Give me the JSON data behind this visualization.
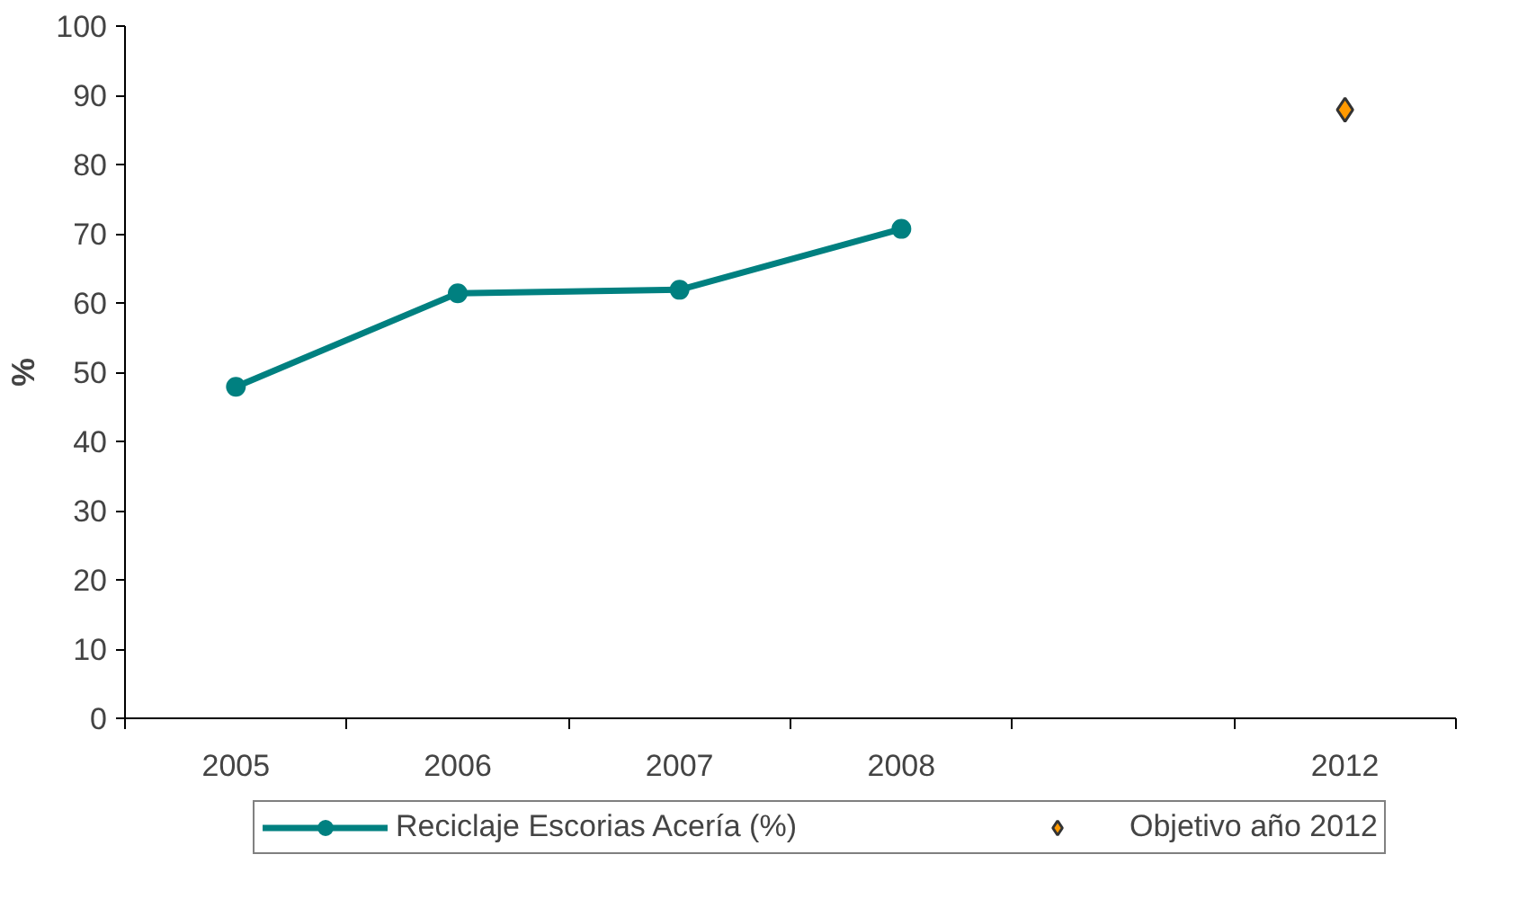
{
  "chart_data": {
    "type": "line",
    "ylabel": "%",
    "categories": [
      "2005",
      "2006",
      "2007",
      "2008",
      null,
      "2012"
    ],
    "series": [
      {
        "name": "Reciclaje Escorias Acería (%)",
        "color": "#008080",
        "marker": "circle",
        "values": [
          47.9,
          61.4,
          61.9,
          70.7,
          null,
          null
        ]
      },
      {
        "name": "Objetivo año 2012",
        "color": "#ff9900",
        "type": "scatter",
        "marker": "diamond",
        "values": [
          null,
          null,
          null,
          null,
          null,
          87.9
        ]
      }
    ],
    "ylim": [
      0,
      100
    ],
    "yticks": [
      0,
      10,
      20,
      30,
      40,
      50,
      60,
      70,
      80,
      90,
      100
    ],
    "grid": false,
    "legend": "bottom"
  }
}
